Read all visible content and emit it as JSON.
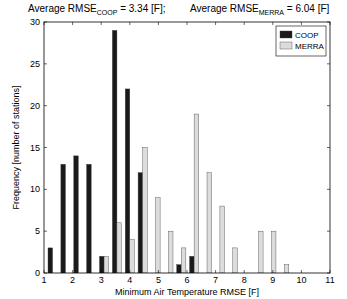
{
  "chart_data": {
    "type": "bar",
    "annotations": [
      {
        "text": "Average RMSE",
        "subscript": "COOP",
        "suffix": " = 3.34 [F];"
      },
      {
        "text": "Average RMSE",
        "subscript": "MERRA",
        "suffix": " = 6.04 [F]"
      }
    ],
    "x_label": "Minimum Air Temperature RMSE [F]",
    "y_label": "Frequency [number of stations]",
    "x": [
      1.3,
      1.75,
      2.2,
      2.65,
      3.1,
      3.55,
      4.0,
      4.45,
      4.9,
      5.35,
      5.8,
      6.25,
      6.7,
      7.15,
      7.6,
      8.05,
      8.5,
      8.95,
      9.4
    ],
    "series": [
      {
        "name": "COOP",
        "color": "#1a1a1a",
        "values": [
          3,
          13,
          14,
          13,
          2,
          29,
          22,
          12,
          0,
          0,
          1,
          2,
          0,
          0,
          0,
          0,
          0,
          0,
          0
        ]
      },
      {
        "name": "MERRA",
        "color": "#dcdcdc",
        "values": [
          0,
          0,
          0,
          0,
          2,
          6,
          4,
          15,
          9,
          5,
          3,
          19,
          12,
          8,
          3,
          0,
          5,
          5,
          1
        ]
      }
    ],
    "xlim": [
      1,
      11
    ],
    "xticks": [
      1,
      2,
      3,
      4,
      5,
      6,
      7,
      8,
      9,
      10,
      11
    ],
    "ylim": [
      0,
      30
    ],
    "yticks": [
      0,
      5,
      10,
      15,
      20,
      25,
      30
    ],
    "grid": false,
    "legend": "top-right"
  }
}
